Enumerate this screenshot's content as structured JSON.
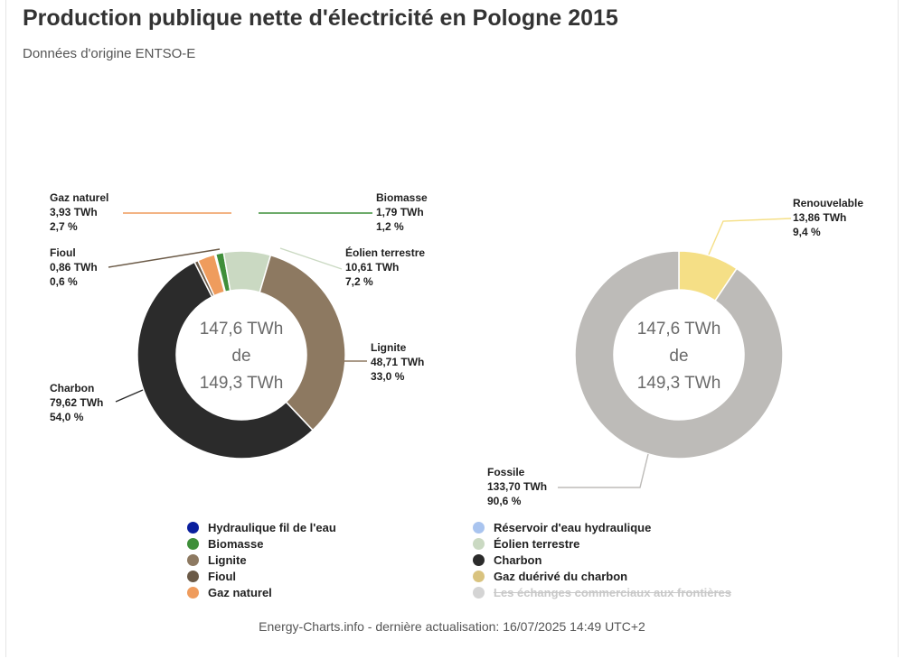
{
  "header": {
    "title": "Production publique nette d'électricité en Pologne 2015",
    "subtitle": "Données d'origine ENTSO-E"
  },
  "chart_data": [
    {
      "type": "pie",
      "variant": "donut",
      "center_text": [
        "147,6 TWh",
        "de",
        "149,3 TWh"
      ],
      "slices": [
        {
          "name": "Hydraulique fil de l'eau",
          "value": 0.3,
          "color": "#0a1f9e",
          "label": [
            "",
            "",
            ""
          ]
        },
        {
          "name": "Biomasse",
          "value": 1.79,
          "color": "#3f8f3a",
          "label": [
            "Biomasse",
            "1,79 TWh",
            "1,2 %"
          ]
        },
        {
          "name": "Éolien terrestre",
          "value": 10.61,
          "color": "#cad9c2",
          "label": [
            "Éolien terrestre",
            "10,61 TWh",
            "7,2 %"
          ]
        },
        {
          "name": "Lignite",
          "value": 48.71,
          "color": "#8d7961",
          "label": [
            "Lignite",
            "48,71 TWh",
            "33,0 %"
          ]
        },
        {
          "name": "Charbon",
          "value": 79.62,
          "color": "#2b2b2b",
          "label": [
            "Charbon",
            "79,62 TWh",
            "54,0 %"
          ]
        },
        {
          "name": "Fioul",
          "value": 0.86,
          "color": "#6b5a47",
          "label": [
            "Fioul",
            "0,86 TWh",
            "0,6 %"
          ]
        },
        {
          "name": "Gaz naturel",
          "value": 3.93,
          "color": "#ef9c5d",
          "label": [
            "Gaz naturel",
            "3,93 TWh",
            "2,7 %"
          ]
        }
      ]
    },
    {
      "type": "pie",
      "variant": "donut",
      "center_text": [
        "147,6 TWh",
        "de",
        "149,3 TWh"
      ],
      "slices": [
        {
          "name": "Renouvelable",
          "value": 13.86,
          "color": "#f5df86",
          "label": [
            "Renouvelable",
            "13,86 TWh",
            "9,4 %"
          ]
        },
        {
          "name": "Fossile",
          "value": 133.7,
          "color": "#bdbbb8",
          "label": [
            "Fossile",
            "133,70 TWh",
            "90,6 %"
          ]
        }
      ]
    }
  ],
  "legend": {
    "left": [
      {
        "label": "Hydraulique fil de l'eau",
        "color": "#0a1f9e",
        "struck": false
      },
      {
        "label": "Biomasse",
        "color": "#3f8f3a",
        "struck": false
      },
      {
        "label": "Lignite",
        "color": "#8d7961",
        "struck": false
      },
      {
        "label": "Fioul",
        "color": "#6b5a47",
        "struck": false
      },
      {
        "label": "Gaz naturel",
        "color": "#ef9c5d",
        "struck": false
      }
    ],
    "right": [
      {
        "label": "Réservoir d'eau hydraulique",
        "color": "#a9c4ef",
        "struck": false
      },
      {
        "label": "Éolien terrestre",
        "color": "#cad9c2",
        "struck": false
      },
      {
        "label": "Charbon",
        "color": "#2b2b2b",
        "struck": false
      },
      {
        "label": "Gaz duérivé du charbon",
        "color": "#d9c37f",
        "struck": false
      },
      {
        "label": "Les échanges commerciaux aux frontières",
        "color": "#d4d4d4",
        "struck": true
      }
    ]
  },
  "footer": {
    "text": "Energy-Charts.info - dernière actualisation: 16/07/2025 14:49 UTC+2"
  }
}
